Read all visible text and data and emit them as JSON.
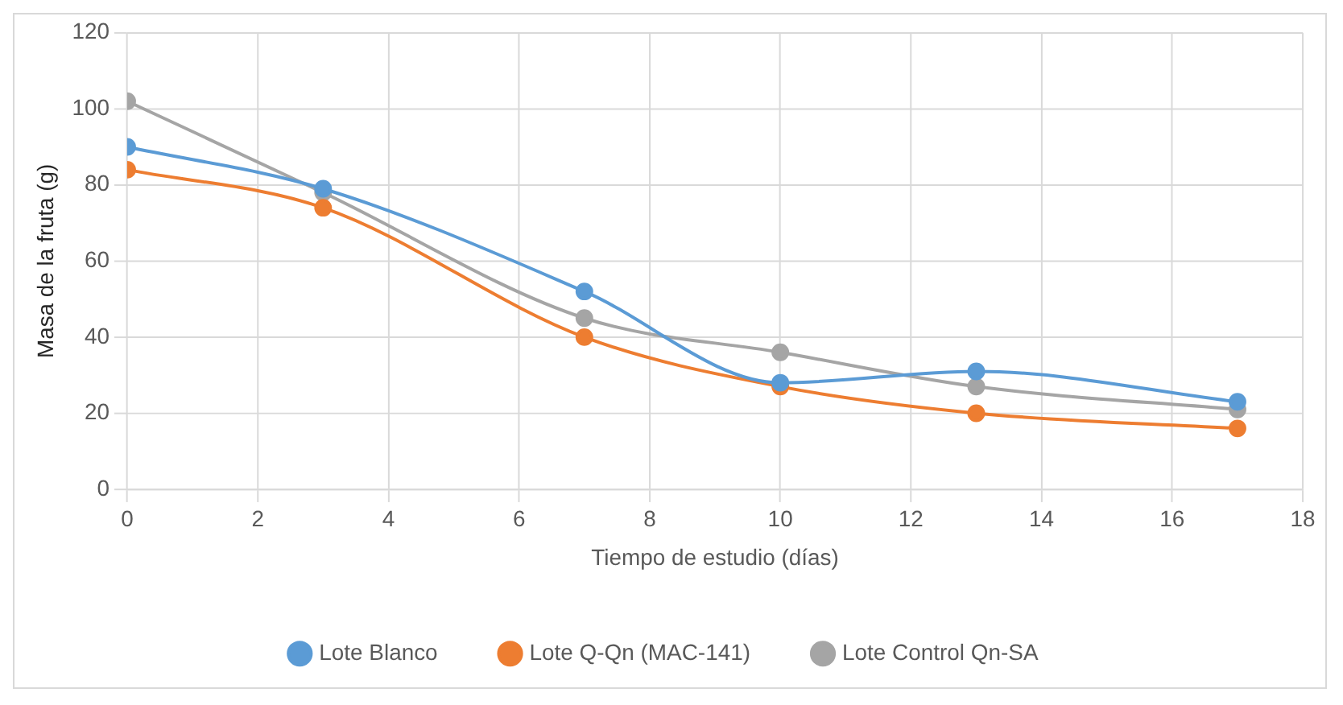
{
  "chart_data": {
    "type": "line",
    "xlabel": "Tiempo de estudio (días)",
    "ylabel": "Masa de la fruta (g)",
    "x": [
      0,
      3,
      7,
      10,
      13,
      17
    ],
    "series": [
      {
        "name": "Lote Blanco",
        "color": "#5b9bd5",
        "values": [
          90,
          79,
          52,
          28,
          31,
          23
        ]
      },
      {
        "name": "Lote Q-Qn (MAC-141)",
        "color": "#ed7d31",
        "values": [
          84,
          74,
          40,
          27,
          20,
          16
        ]
      },
      {
        "name": "Lote Control Qn-SA",
        "color": "#a5a5a5",
        "values": [
          102,
          78,
          45,
          36,
          27,
          21
        ]
      }
    ],
    "xlim": [
      0,
      18
    ],
    "xticks": [
      0,
      2,
      4,
      6,
      8,
      10,
      12,
      14,
      16,
      18
    ],
    "ylim": [
      0,
      120
    ],
    "yticks": [
      0,
      20,
      40,
      60,
      80,
      100,
      120
    ],
    "grid": true,
    "legend": "bottom",
    "marker": "circle",
    "line_style": "solid"
  }
}
